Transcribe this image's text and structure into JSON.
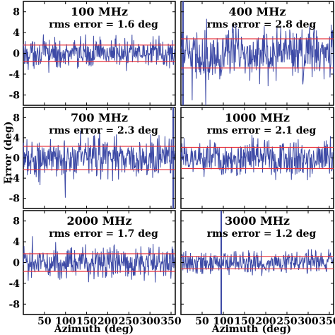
{
  "figure": {
    "ylabel": "Error (deg)",
    "xlabel": "Azimuth (deg)"
  },
  "colors": {
    "trace": "#3d4aa6",
    "rms_line": "#e8323a",
    "axes": "#000000"
  },
  "chart_data": [
    {
      "type": "line",
      "title": "100 MHz",
      "annotation": "rms error = 1.6 deg",
      "rms": 1.6,
      "xlim": [
        0,
        360
      ],
      "ylim": [
        -10,
        10
      ],
      "x_ticks": [
        50,
        100,
        150,
        200,
        250,
        300,
        350
      ],
      "y_ticks": [
        8,
        4,
        0,
        -4,
        -8
      ],
      "spike": null
    },
    {
      "type": "line",
      "title": "400 MHz",
      "annotation": "rms error = 2.8 deg",
      "rms": 2.8,
      "xlim": [
        0,
        360
      ],
      "ylim": [
        -10,
        10
      ],
      "x_ticks": [
        50,
        100,
        150,
        200,
        250,
        300,
        350
      ],
      "y_ticks": [
        8,
        4,
        0,
        -4,
        -8
      ],
      "spike": 5
    },
    {
      "type": "line",
      "title": "700 MHz",
      "annotation": "rms error = 2.3 deg",
      "rms": 2.3,
      "xlim": [
        0,
        360
      ],
      "ylim": [
        -10,
        10
      ],
      "x_ticks": [
        50,
        100,
        150,
        200,
        250,
        300,
        350
      ],
      "y_ticks": [
        8,
        4,
        0,
        -4,
        -8
      ],
      "spike": 355
    },
    {
      "type": "line",
      "title": "1000 MHz",
      "annotation": "rms error = 2.1 deg",
      "rms": 2.1,
      "xlim": [
        0,
        360
      ],
      "ylim": [
        -10,
        10
      ],
      "x_ticks": [
        50,
        100,
        150,
        200,
        250,
        300,
        350
      ],
      "y_ticks": [
        8,
        4,
        0,
        -4,
        -8
      ],
      "spike": null
    },
    {
      "type": "line",
      "title": "2000 MHz",
      "annotation": "rms error = 1.7 deg",
      "rms": 1.7,
      "xlim": [
        0,
        360
      ],
      "ylim": [
        -10,
        10
      ],
      "x_ticks": [
        50,
        100,
        150,
        200,
        250,
        300,
        350
      ],
      "y_ticks": [
        8,
        4,
        0,
        -4,
        -8
      ],
      "spike": null
    },
    {
      "type": "line",
      "title": "3000 MHz",
      "annotation": "rms error = 1.2 deg",
      "rms": 1.2,
      "xlim": [
        0,
        360
      ],
      "ylim": [
        -10,
        10
      ],
      "x_ticks": [
        50,
        100,
        150,
        200,
        250,
        300,
        350
      ],
      "y_ticks": [
        8,
        4,
        0,
        -4,
        -8
      ],
      "spike": 95
    }
  ]
}
